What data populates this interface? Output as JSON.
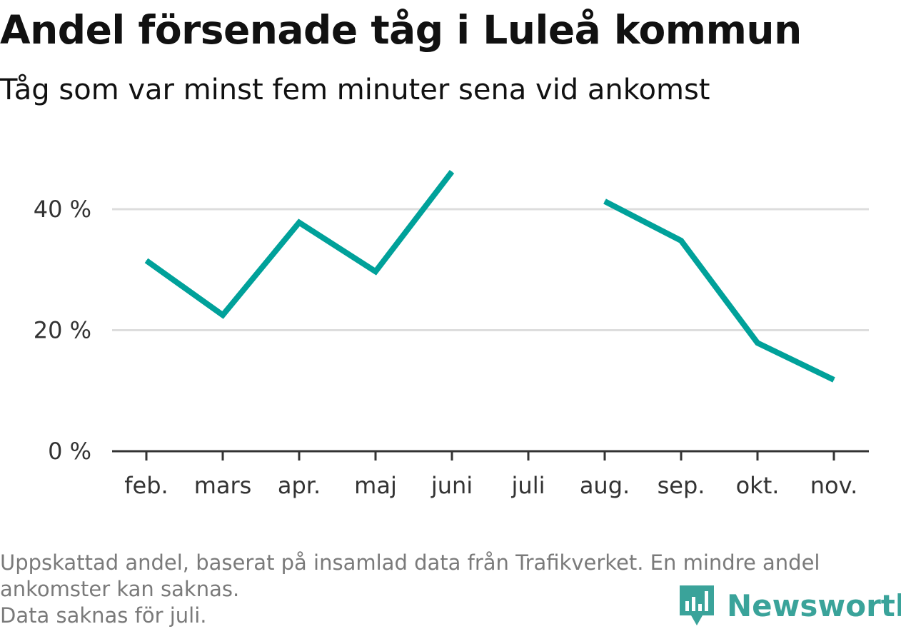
{
  "header": {
    "title": "Andel försenade tåg i Luleå kommun",
    "subtitle": "Tåg som var minst fem minuter sena vid ankomst"
  },
  "footer": {
    "note_line1": "Uppskattad andel, baserat på insamlad data från Trafikverket. En mindre andel",
    "note_line2": "ankomster kan saknas.",
    "note_line3": "Data saknas för juli.",
    "brand": "Newsworthy",
    "brand_icon": "newsworthy-logo-icon"
  },
  "chart_data": {
    "type": "line",
    "title": "Andel försenade tåg i Luleå kommun",
    "subtitle": "Tåg som var minst fem minuter sena vid ankomst",
    "categories": [
      "feb.",
      "mars",
      "apr.",
      "maj",
      "juni",
      "juli",
      "aug.",
      "sep.",
      "okt.",
      "nov."
    ],
    "series": [
      {
        "values": [
          31.5,
          22.5,
          37.8,
          29.7,
          46.2,
          null,
          41.3,
          34.8,
          17.9,
          11.8
        ],
        "color": "#00a19a"
      }
    ],
    "y_ticks": [
      {
        "value": 0,
        "label": "0 %"
      },
      {
        "value": 20,
        "label": "20 %"
      },
      {
        "value": 40,
        "label": "40 %"
      }
    ],
    "ylim": [
      0,
      50
    ],
    "grid": true,
    "gridline_color": "#dddddd",
    "axis_color": "#333333",
    "xlabel": "",
    "ylabel": ""
  }
}
